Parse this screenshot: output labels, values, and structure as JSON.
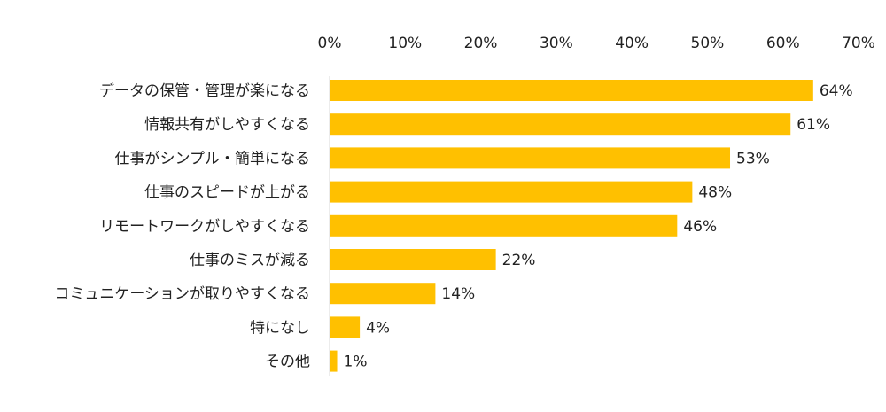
{
  "chart_data": {
    "type": "bar",
    "orientation": "horizontal",
    "categories": [
      "データの保管・管理が楽になる",
      "情報共有がしやすくなる",
      "仕事がシンプル・簡単になる",
      "仕事のスピードが上がる",
      "リモートワークがしやすくなる",
      "仕事のミスが減る",
      "コミュニケーションが取りやすくなる",
      "特になし",
      "その他"
    ],
    "values": [
      64,
      61,
      53,
      48,
      46,
      22,
      14,
      4,
      1
    ],
    "value_labels": [
      "64%",
      "61%",
      "53%",
      "48%",
      "46%",
      "22%",
      "14%",
      "4%",
      "1%"
    ],
    "x_ticks": [
      0,
      10,
      20,
      30,
      40,
      50,
      60,
      70
    ],
    "x_tick_labels": [
      "0%",
      "10%",
      "20%",
      "30%",
      "40%",
      "50%",
      "60%",
      "70%"
    ],
    "xlim": [
      0,
      70
    ],
    "x_axis_position": "top",
    "grid": false,
    "legend": "none",
    "bar_color": "#FFC000",
    "axis_color": "#D9D9D9",
    "text_color": "#222222"
  }
}
